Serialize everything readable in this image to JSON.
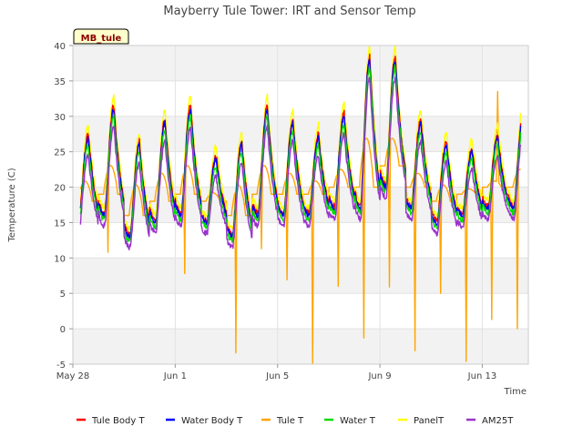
{
  "chart_data": {
    "type": "line",
    "title": "Mayberry Tule Tower: IRT and Sensor Temp",
    "xlabel": "Time",
    "ylabel": "Temperature (C)",
    "badge": "MB_tule",
    "ylim": [
      -5,
      40
    ],
    "yticks": [
      -5,
      0,
      5,
      10,
      15,
      20,
      25,
      30,
      35,
      40
    ],
    "xlim": [
      0,
      17.8
    ],
    "xticks": [
      {
        "pos": 0,
        "label": "May 28"
      },
      {
        "pos": 4,
        "label": "Jun 1"
      },
      {
        "pos": 8,
        "label": "Jun 5"
      },
      {
        "pos": 12,
        "label": "Jun 9"
      },
      {
        "pos": 16,
        "label": "Jun 13"
      }
    ],
    "x_start": 0.3,
    "x_end": 17.5,
    "grid": true,
    "band_fill": "#f2f2f2",
    "legend_position": "bottom",
    "series": [
      {
        "name": "Tule Body T",
        "color": "#ff0000",
        "offset": 0.5,
        "mode": "irt"
      },
      {
        "name": "Water Body T",
        "color": "#0000ff",
        "offset": 0.0,
        "mode": "irt"
      },
      {
        "name": "Tule T",
        "color": "#ffa500",
        "offset": 0.0,
        "mode": "tule"
      },
      {
        "name": "Water T",
        "color": "#00dd00",
        "offset": -1.0,
        "mode": "irt"
      },
      {
        "name": "PanelT",
        "color": "#ffff00",
        "offset": 1.8,
        "mode": "irt"
      },
      {
        "name": "AM25T",
        "color": "#9a32cd",
        "offset": -2.5,
        "mode": "irt"
      }
    ],
    "daily_max": [
      27,
      31,
      26,
      29,
      31,
      24,
      26,
      31,
      29,
      27,
      30,
      38,
      38,
      29,
      26,
      25,
      27,
      30
    ],
    "daily_min": [
      15,
      16,
      13,
      15,
      16,
      15,
      13,
      16,
      16,
      16,
      17,
      17,
      20,
      17,
      15,
      16,
      17,
      17
    ],
    "tule_dips": [
      {
        "day": 1,
        "value": 10.8
      },
      {
        "day": 4,
        "value": 7.8
      },
      {
        "day": 5,
        "value": 18.0
      },
      {
        "day": 6,
        "value": -3.4
      },
      {
        "day": 7,
        "value": 11.3
      },
      {
        "day": 8,
        "value": 6.9
      },
      {
        "day": 9,
        "value": -4.9
      },
      {
        "day": 10,
        "value": 6.0
      },
      {
        "day": 11,
        "value": -1.3
      },
      {
        "day": 12,
        "value": 5.9
      },
      {
        "day": 13,
        "value": -3.1
      },
      {
        "day": 14,
        "value": 5.0
      },
      {
        "day": 15,
        "value": -4.6
      },
      {
        "day": 16,
        "value": 1.3
      },
      {
        "day": 17,
        "value": 0.0
      }
    ],
    "tule_spike": {
      "day": 16.6,
      "value": 33.5
    }
  }
}
